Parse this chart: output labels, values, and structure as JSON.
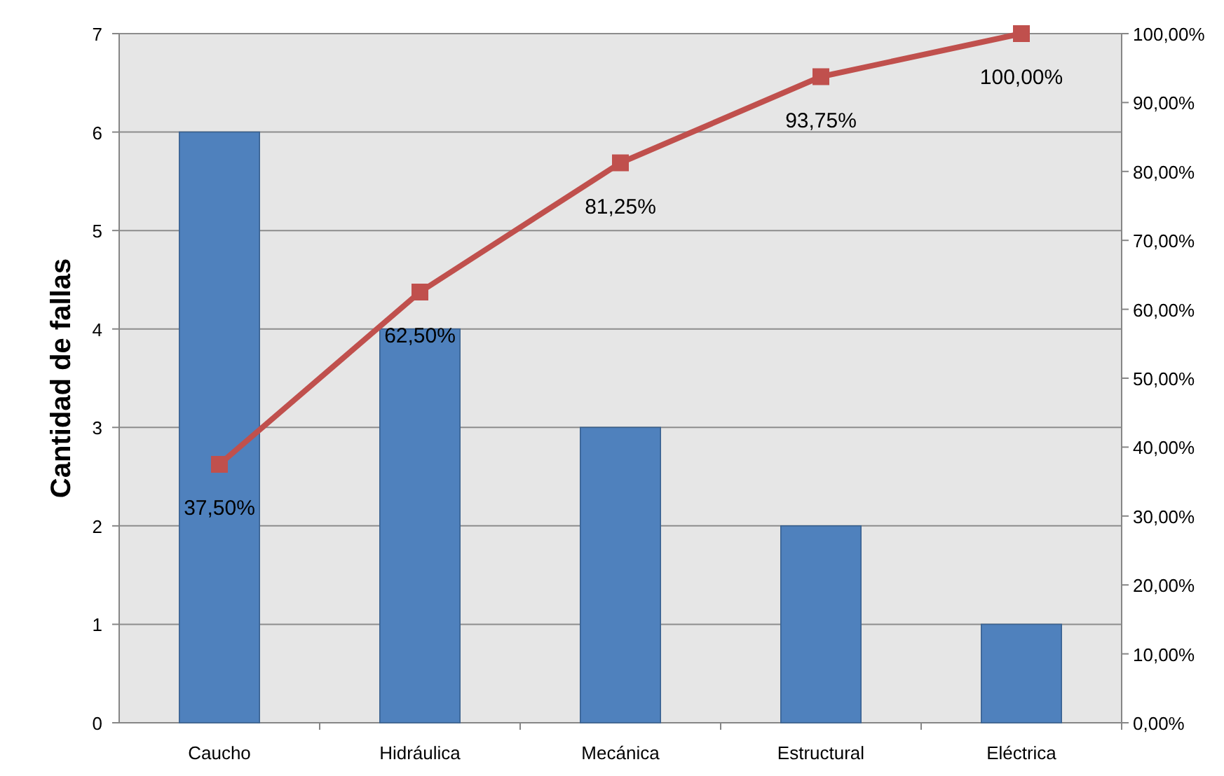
{
  "chart_data": {
    "type": "bar",
    "ylabel": "Cantidad de fallas",
    "categories": [
      "Caucho",
      "Hidráulica",
      "Mecánica",
      "Estructural",
      "Eléctrica"
    ],
    "series": [
      {
        "color": "#4f81bd",
        "values": [
          6,
          4,
          3,
          2,
          1
        ]
      },
      {
        "type": "line",
        "axis": "y2",
        "color": "#c0504d",
        "marker": "square",
        "values": [
          37.5,
          62.5,
          81.25,
          93.75,
          100
        ],
        "value_labels": [
          "37,50%",
          "62,50%",
          "81,25%",
          "93,75%",
          "100,00%"
        ]
      }
    ],
    "ylim": [
      0,
      7
    ],
    "yticks": [
      0,
      1,
      2,
      3,
      4,
      5,
      6,
      7
    ],
    "y2lim": [
      0,
      100
    ],
    "y2ticks": [
      {
        "value": 0,
        "label": "0,00%"
      },
      {
        "value": 10,
        "label": "10,00%"
      },
      {
        "value": 20,
        "label": "20,00%"
      },
      {
        "value": 30,
        "label": "30,00%"
      },
      {
        "value": 40,
        "label": "40,00%"
      },
      {
        "value": 50,
        "label": "50,00%"
      },
      {
        "value": 60,
        "label": "60,00%"
      },
      {
        "value": 70,
        "label": "70,00%"
      },
      {
        "value": 80,
        "label": "80,00%"
      },
      {
        "value": 90,
        "label": "90,00%"
      },
      {
        "value": 100,
        "label": "100,00%"
      }
    ],
    "grid": "y"
  }
}
